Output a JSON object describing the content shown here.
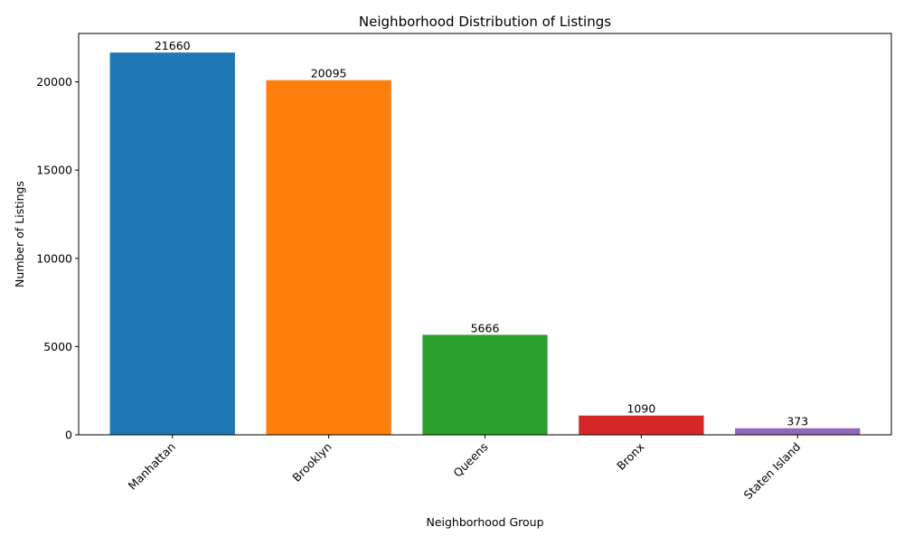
{
  "chart_data": {
    "type": "bar",
    "title": "Neighborhood Distribution of Listings",
    "xlabel": "Neighborhood Group",
    "ylabel": "Number of Listings",
    "categories": [
      "Manhattan",
      "Brooklyn",
      "Queens",
      "Bronx",
      "Staten Island"
    ],
    "values": [
      21660,
      20095,
      5666,
      1090,
      373
    ],
    "colors": [
      "#1f77b4",
      "#ff7f0e",
      "#2ca02c",
      "#d62728",
      "#9467bd"
    ],
    "ylim": [
      0,
      22743
    ],
    "yticks": [
      0,
      5000,
      10000,
      15000,
      20000
    ],
    "grid": false,
    "legend": "none",
    "x_tick_rotation": 45
  }
}
